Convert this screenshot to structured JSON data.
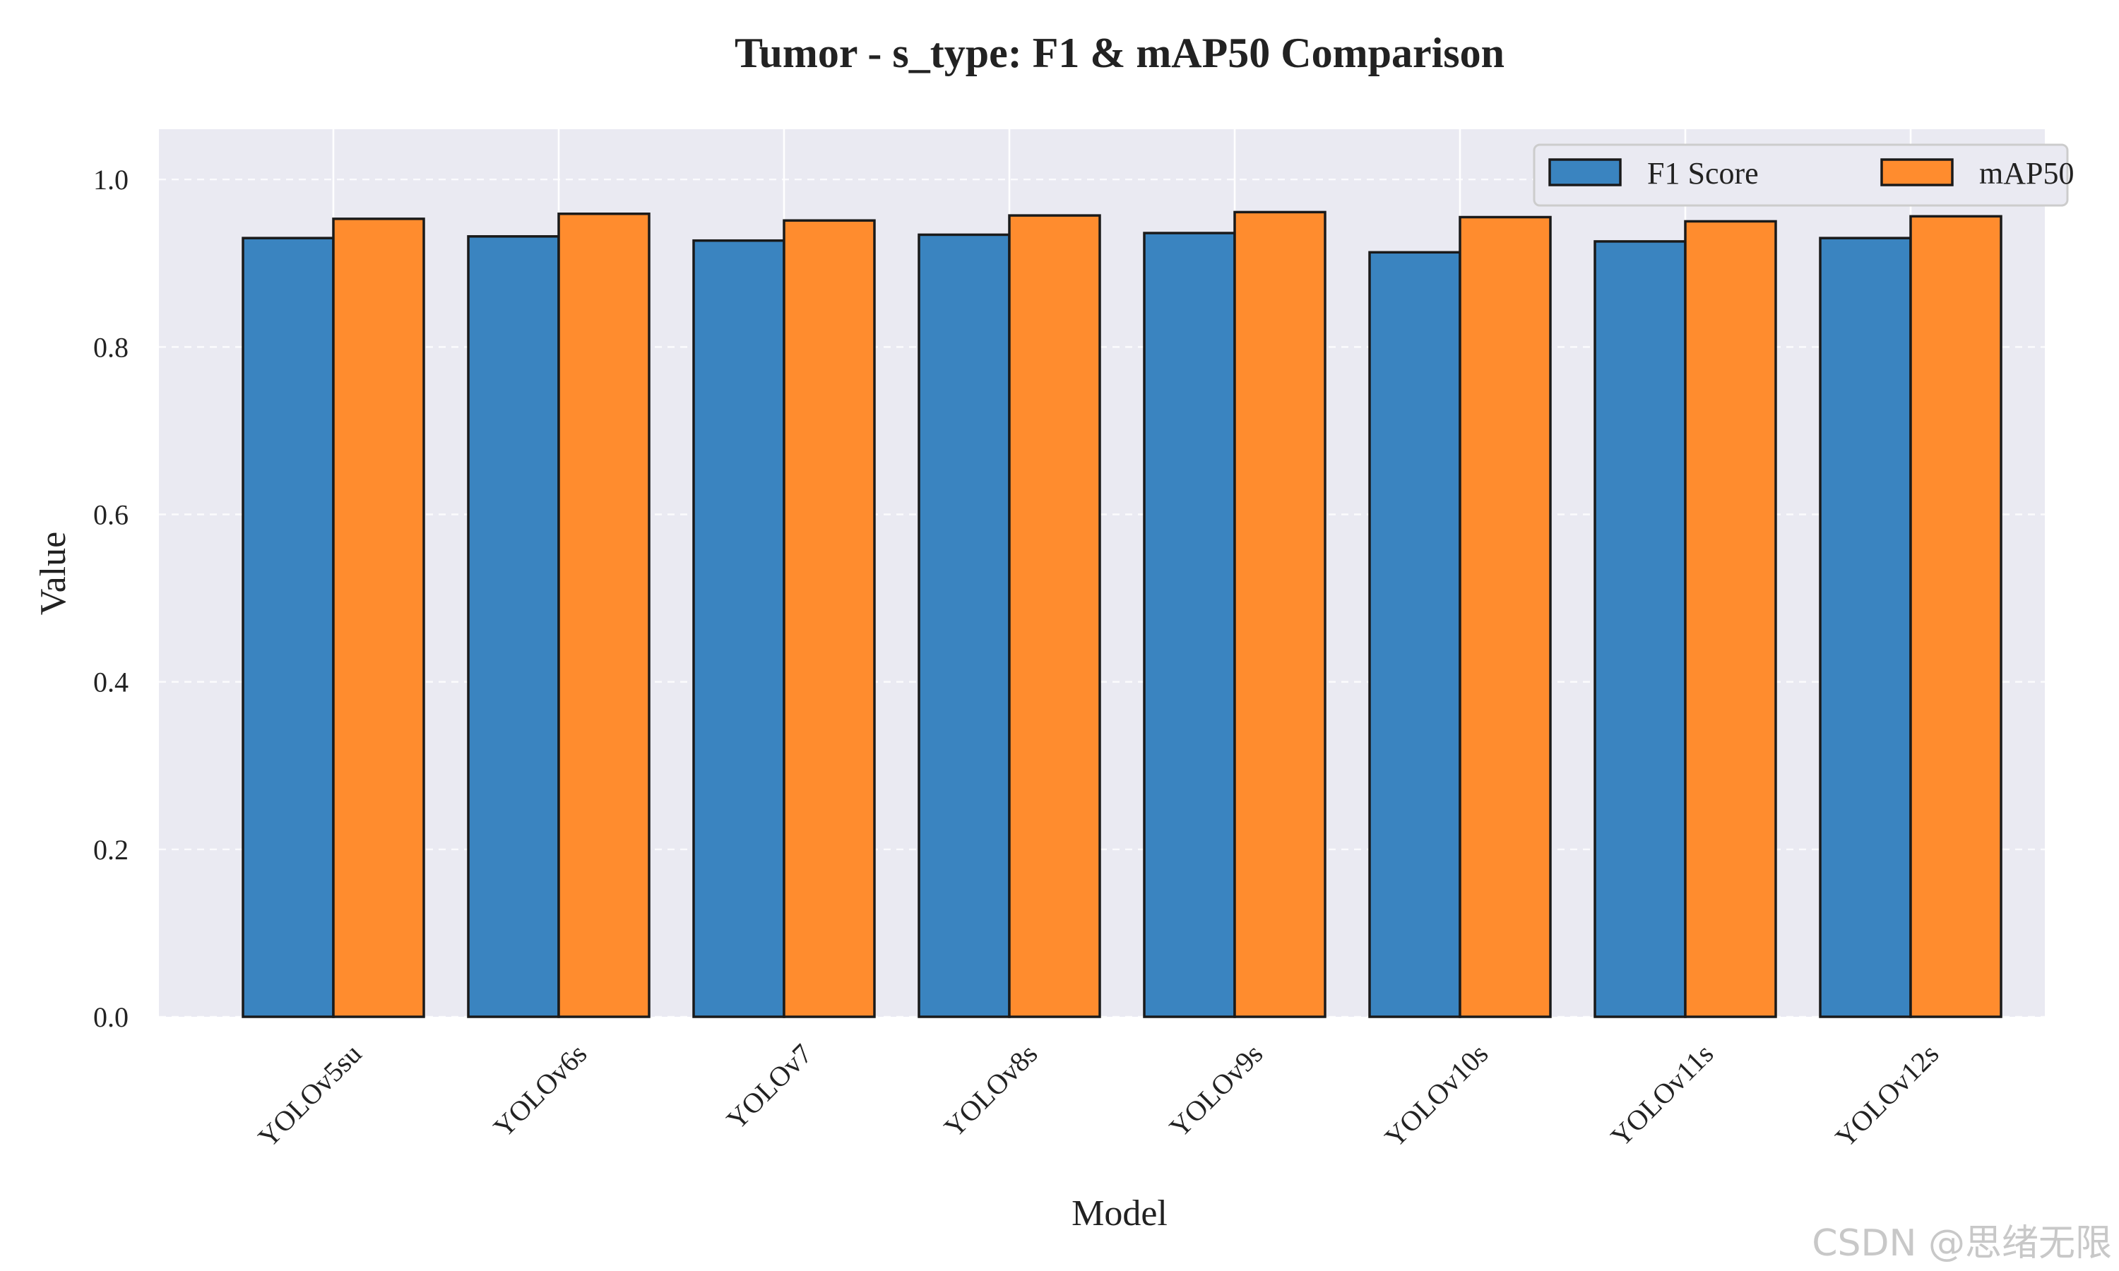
{
  "chart_data": {
    "type": "bar",
    "title": "Tumor - s_type: F1 & mAP50 Comparison",
    "xlabel": "Model",
    "ylabel": "Value",
    "ylim": [
      0,
      1.06
    ],
    "yticks": [
      "0.0",
      "0.2",
      "0.4",
      "0.6",
      "0.8",
      "1.0"
    ],
    "categories": [
      "YOLOv5su",
      "YOLOv6s",
      "YOLOv7",
      "YOLOv8s",
      "YOLOv9s",
      "YOLOv10s",
      "YOLOv11s",
      "YOLOv12s"
    ],
    "series": [
      {
        "name": "F1 Score",
        "color": "#3a84c0",
        "values": [
          0.93,
          0.932,
          0.927,
          0.934,
          0.936,
          0.913,
          0.926,
          0.93
        ]
      },
      {
        "name": "mAP50",
        "color": "#ff8c2e",
        "values": [
          0.953,
          0.959,
          0.951,
          0.957,
          0.961,
          0.955,
          0.95,
          0.956
        ]
      }
    ],
    "grid": true,
    "legend_position": "top-right"
  },
  "watermark": "CSDN @思绪无限"
}
